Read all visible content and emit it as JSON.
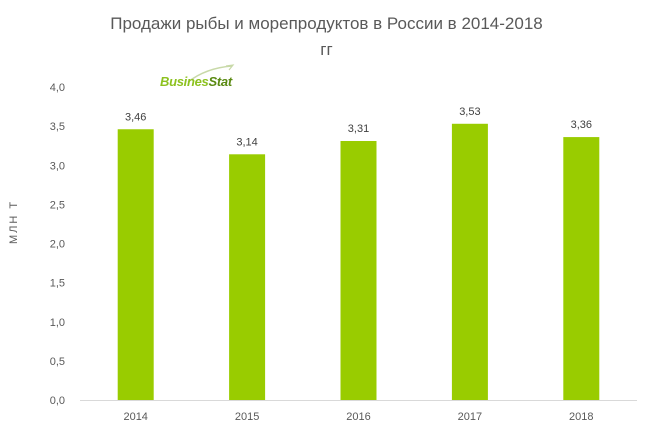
{
  "chart_data": {
    "type": "bar",
    "title_line1": "Продажи рыбы и морепродуктов в России в 2014-2018",
    "title_line2": "гг",
    "ylabel": "МЛН Т",
    "categories": [
      "2014",
      "2015",
      "2016",
      "2017",
      "2018"
    ],
    "values": [
      3.46,
      3.14,
      3.31,
      3.53,
      3.36
    ],
    "value_labels": [
      "3,46",
      "3,14",
      "3,31",
      "3,53",
      "3,36"
    ],
    "ylim": [
      0,
      4.0
    ],
    "yticks": [
      0,
      0.5,
      1.0,
      1.5,
      2.0,
      2.5,
      3.0,
      3.5,
      4.0
    ],
    "ytick_labels": [
      "0,0",
      "0,5",
      "1,0",
      "1,5",
      "2,0",
      "2,5",
      "3,0",
      "3,5",
      "4,0"
    ],
    "grid": false,
    "bar_color": "#99cc00"
  },
  "logo": {
    "part1": "Busines",
    "part2": "Stat"
  }
}
